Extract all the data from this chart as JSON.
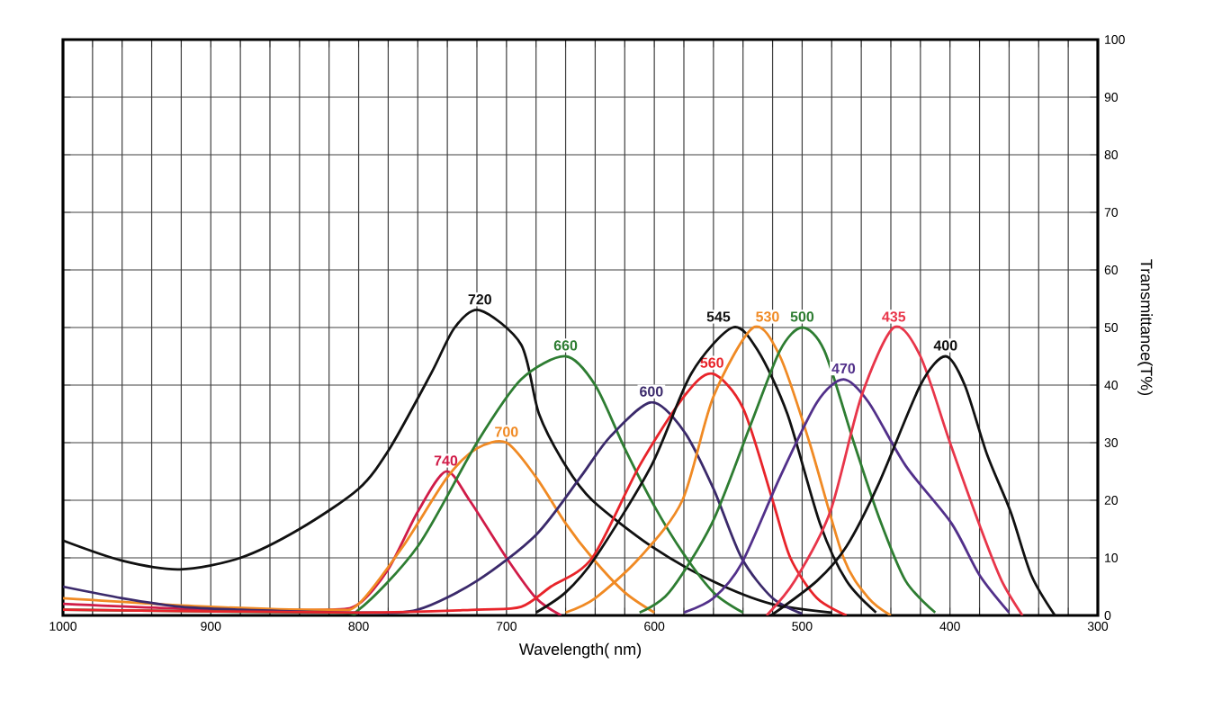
{
  "chart_data": {
    "type": "line",
    "xlabel": "Wavelength( nm)",
    "ylabel": "Transmittance(T%)",
    "xlim": [
      1000,
      300
    ],
    "ylim": [
      0,
      100
    ],
    "xticks": [
      1000,
      {
        "value": 980,
        "label": null
      },
      {
        "value": 960,
        "label": null
      },
      {
        "value": 940,
        "label": null
      },
      {
        "value": 920,
        "label": null
      },
      900,
      {
        "value": 880,
        "label": null
      },
      {
        "value": 860,
        "label": null
      },
      {
        "value": 840,
        "label": null
      },
      {
        "value": 820,
        "label": null
      },
      800,
      {
        "value": 780,
        "label": null
      },
      {
        "value": 760,
        "label": null
      },
      {
        "value": 740,
        "label": null
      },
      {
        "value": 720,
        "label": null
      },
      700,
      {
        "value": 680,
        "label": null
      },
      {
        "value": 660,
        "label": null
      },
      {
        "value": 640,
        "label": null
      },
      {
        "value": 620,
        "label": null
      },
      600,
      {
        "value": 580,
        "label": null
      },
      {
        "value": 560,
        "label": null
      },
      {
        "value": 540,
        "label": null
      },
      {
        "value": 520,
        "label": null
      },
      500,
      {
        "value": 480,
        "label": null
      },
      {
        "value": 460,
        "label": null
      },
      {
        "value": 440,
        "label": null
      },
      {
        "value": 420,
        "label": null
      },
      400,
      {
        "value": 380,
        "label": null
      },
      {
        "value": 360,
        "label": null
      },
      {
        "value": 340,
        "label": null
      },
      {
        "value": 320,
        "label": null
      },
      300
    ],
    "yticks": [
      0,
      10,
      20,
      30,
      40,
      50,
      60,
      70,
      80,
      90,
      100
    ],
    "grid": true,
    "legend": false,
    "marker": "none",
    "line_style": "solid",
    "series": [
      {
        "name": "720",
        "color": "#111111",
        "x": [
          1000,
          960,
          921,
          880,
          840,
          800,
          779,
          751,
          735,
          718,
          690,
          678,
          660,
          642,
          602,
          561,
          521,
          480
        ],
        "values": [
          13,
          9.5,
          8,
          10,
          15,
          22,
          29,
          42,
          50,
          53,
          47,
          35,
          26,
          20,
          12,
          6,
          2,
          0.5
        ]
      },
      {
        "name": "740",
        "color": "#d01c48",
        "x": [
          1000,
          900,
          820,
          800,
          780,
          760,
          741,
          725,
          700,
          680,
          663
        ],
        "values": [
          2,
          1,
          1,
          2,
          8,
          18,
          25,
          20,
          10,
          3,
          0
        ]
      },
      {
        "name": "700",
        "color": "#f08a24",
        "x": [
          1000,
          900,
          820,
          800,
          770,
          740,
          720,
          700,
          680,
          660,
          642,
          620,
          600
        ],
        "values": [
          3,
          1.5,
          1,
          2,
          12,
          24,
          29,
          30,
          24,
          16,
          10,
          4,
          0.5
        ]
      },
      {
        "name": "660",
        "color": "#2e7d32",
        "x": [
          1000,
          820,
          800,
          760,
          720,
          690,
          660,
          640,
          620,
          600,
          581,
          560,
          540
        ],
        "values": [
          1,
          0.5,
          1,
          12,
          30,
          41,
          45,
          40,
          29,
          19,
          11,
          4,
          0.5
        ]
      },
      {
        "name": "600",
        "color": "#3b2a6b",
        "x": [
          1000,
          960,
          920,
          880,
          800,
          760,
          720,
          680,
          650,
          630,
          602,
          580,
          560,
          541,
          520,
          500
        ],
        "values": [
          5,
          3,
          1.5,
          1,
          0.5,
          1,
          6,
          14,
          24,
          31,
          37,
          32,
          22,
          10,
          3,
          0.3
        ]
      },
      {
        "name": "560",
        "color": "#e8242a",
        "x": [
          1000,
          800,
          720,
          690,
          670,
          642,
          610,
          580,
          561,
          540,
          520,
          508,
          490,
          470
        ],
        "values": [
          1,
          0.5,
          1,
          1.5,
          5,
          10,
          26,
          38,
          42,
          36,
          20,
          10,
          3,
          0
        ]
      },
      {
        "name": "545",
        "color": "#111111",
        "x": [
          680,
          660,
          640,
          602,
          575,
          547,
          530,
          510,
          488,
          470,
          450
        ],
        "values": [
          0.5,
          4,
          10,
          26,
          42,
          50,
          46,
          35,
          16,
          6,
          0.5
        ]
      },
      {
        "name": "530",
        "color": "#f08a24",
        "x": [
          660,
          640,
          610,
          581,
          560,
          533,
          515,
          495,
          472,
          455,
          440
        ],
        "values": [
          0.5,
          3,
          10,
          20,
          38,
          50,
          45,
          30,
          10,
          3,
          0
        ]
      },
      {
        "name": "500",
        "color": "#2e7d32",
        "x": [
          610,
          590,
          561,
          535,
          515,
          500,
          485,
          465,
          448,
          430,
          410
        ],
        "values": [
          0.5,
          4,
          16,
          33,
          46,
          50,
          46,
          30,
          17,
          6,
          0.5
        ]
      },
      {
        "name": "470",
        "color": "#52308a",
        "x": [
          580,
          560,
          541,
          515,
          490,
          472,
          455,
          430,
          399,
          380,
          360
        ],
        "values": [
          0.5,
          3,
          9,
          24,
          37,
          41,
          37,
          26,
          16,
          7,
          0.5
        ]
      },
      {
        "name": "435",
        "color": "#e8364a",
        "x": [
          524,
          505,
          481,
          460,
          438,
          420,
          400,
          379,
          365,
          351
        ],
        "values": [
          0,
          6,
          18,
          38,
          50,
          45,
          30,
          15,
          6,
          0
        ]
      },
      {
        "name": "400",
        "color": "#111111",
        "x": [
          521,
          490,
          470,
          448,
          420,
          403,
          390,
          375,
          359,
          345,
          329
        ],
        "values": [
          0,
          6,
          12,
          23,
          40,
          45,
          40,
          28,
          18,
          7,
          0
        ]
      }
    ]
  }
}
